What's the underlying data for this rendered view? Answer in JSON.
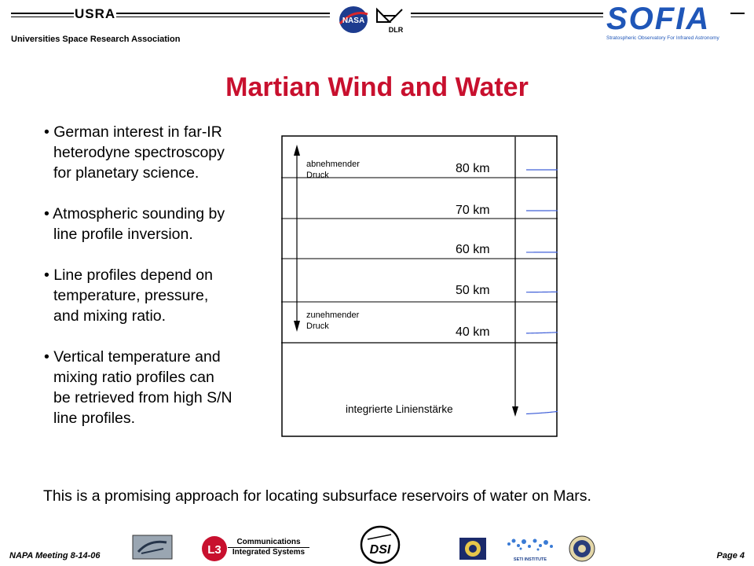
{
  "header": {
    "usra_logo_text": "USRA",
    "usra_name": "Universities Space Research Association",
    "nasa_logo_text": "NASA",
    "dlr_logo_text": "DLR",
    "sofia_logo_text": "SOFIA",
    "sofia_tagline": "Stratospheric Observatory For Infrared Astronomy"
  },
  "title": "Martian Wind and Water",
  "bullets": [
    {
      "line1": "• German interest in far-IR",
      "rest": [
        "heterodyne spectroscopy",
        "for planetary science."
      ]
    },
    {
      "line1": "• Atmospheric sounding by",
      "rest": [
        "line profile inversion."
      ]
    },
    {
      "line1": "• Line profiles depend on",
      "rest": [
        "temperature, pressure,",
        "and mixing ratio."
      ]
    },
    {
      "line1": "• Vertical temperature and",
      "rest": [
        "mixing ratio profiles can",
        "be retrieved from high S/N",
        "line profiles."
      ]
    }
  ],
  "figure": {
    "top_label_1": "abnehmender",
    "top_label_2": "Druck",
    "bottom_label_1": "zunehmender",
    "bottom_label_2": "Druck",
    "altitudes": [
      "80 km",
      "70 km",
      "60 km",
      "50 km",
      "40 km"
    ],
    "integrated_label": "integrierte Linienstärke",
    "line_color": "#4060d8"
  },
  "conclusion": "This is a promising approach for locating subsurface reservoirs of water on Mars.",
  "footer": {
    "meeting": "NAPA Meeting 8-14-06",
    "page": "Page 4",
    "l3_logo": "L3",
    "l3_line1": "Communications",
    "l3_line2": "Integrated Systems",
    "dsi_logo": "DSI",
    "seti_logo": "SETI INSTITUTE"
  }
}
